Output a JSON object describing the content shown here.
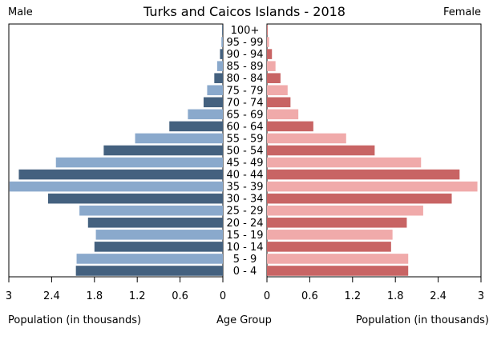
{
  "chart_data": {
    "type": "bar",
    "orientation": "horizontal",
    "title": "Turks and Caicos Islands - 2018",
    "left_label": "Male",
    "right_label": "Female",
    "xlabel_left": "Population (in thousands)",
    "xlabel_center": "Age Group",
    "xlabel_right": "Population (in thousands)",
    "categories": [
      "0 - 4",
      "5 - 9",
      "10 - 14",
      "15 - 19",
      "20 - 24",
      "25 - 29",
      "30 - 34",
      "35 - 39",
      "40 - 44",
      "45 - 49",
      "50 - 54",
      "55 - 59",
      "60 - 64",
      "65 - 69",
      "70 - 74",
      "75 - 79",
      "80 - 84",
      "85 - 89",
      "90 - 94",
      "95 - 99",
      "100+"
    ],
    "series": [
      {
        "name": "Male",
        "values": [
          2.06,
          2.05,
          1.8,
          1.78,
          1.89,
          2.01,
          2.45,
          2.99,
          2.86,
          2.34,
          1.67,
          1.23,
          0.75,
          0.49,
          0.27,
          0.22,
          0.12,
          0.08,
          0.04,
          0.02,
          0.01
        ]
      },
      {
        "name": "Female",
        "values": [
          1.98,
          1.98,
          1.74,
          1.76,
          1.96,
          2.19,
          2.59,
          2.95,
          2.7,
          2.16,
          1.51,
          1.11,
          0.65,
          0.44,
          0.33,
          0.29,
          0.19,
          0.12,
          0.07,
          0.03,
          0.01
        ]
      }
    ],
    "xlim": [
      0,
      3
    ],
    "xticks_left": [
      "3",
      "2.4",
      "1.8",
      "1.2",
      "0.6",
      "0"
    ],
    "xticks_right": [
      "0",
      "0.6",
      "1.2",
      "1.8",
      "2.4",
      "3"
    ],
    "colors": {
      "male_dark": "#44617f",
      "male_light": "#8aa9cc",
      "female_dark": "#c86464",
      "female_light": "#f0aaaa"
    }
  }
}
